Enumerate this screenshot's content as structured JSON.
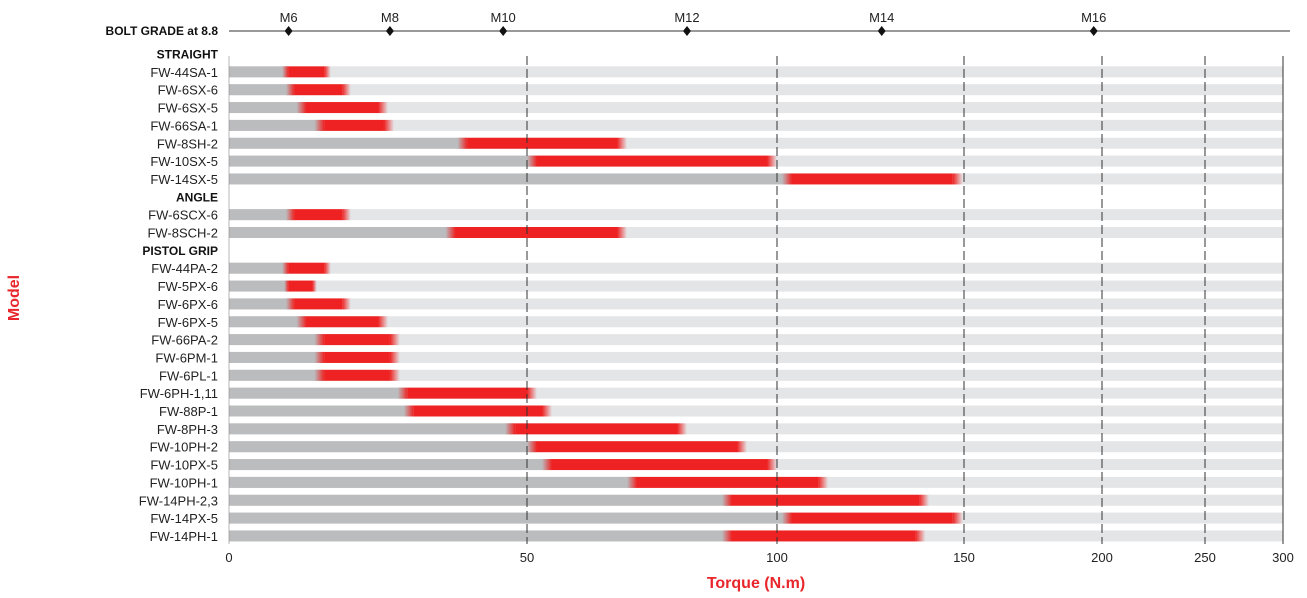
{
  "chart_data": {
    "type": "bar",
    "orientation": "horizontal",
    "xlabel": "Torque (N.m)",
    "ylabel": "Model",
    "x_scale": "piecewise-linear",
    "xlim": [
      0,
      300
    ],
    "x_ticks": [
      0,
      50,
      100,
      150,
      200,
      250,
      300
    ],
    "grid": "dashed vertical lines at 50, 100, 150, 200, 250",
    "bolt_grade": {
      "label": "BOLT GRADE at 8.8",
      "marks": [
        {
          "name": "M6",
          "x": 10
        },
        {
          "name": "M8",
          "x": 27
        },
        {
          "name": "M10",
          "x": 46
        },
        {
          "name": "M12",
          "x": 82
        },
        {
          "name": "M14",
          "x": 128
        },
        {
          "name": "M16",
          "x": 197
        }
      ]
    },
    "groups": [
      {
        "name": "STRAIGHT",
        "items": [
          {
            "model": "FW-44SA-1",
            "min": 10,
            "max": 16
          },
          {
            "model": "FW-6SX-6",
            "min": 11,
            "max": 19
          },
          {
            "model": "FW-6SX-5",
            "min": 13,
            "max": 25
          },
          {
            "model": "FW-66SA-1",
            "min": 16,
            "max": 26
          },
          {
            "model": "FW-8SH-2",
            "min": 40,
            "max": 68
          },
          {
            "model": "FW-10SX-5",
            "min": 52,
            "max": 98
          },
          {
            "model": "FW-14SX-5",
            "min": 104,
            "max": 147
          }
        ]
      },
      {
        "name": "ANGLE",
        "items": [
          {
            "model": "FW-6SCX-6",
            "min": 11,
            "max": 19
          },
          {
            "model": "FW-8SCH-2",
            "min": 38,
            "max": 68
          }
        ]
      },
      {
        "name": "PISTOL GRIP",
        "items": [
          {
            "model": "FW-44PA-2",
            "min": 10,
            "max": 16
          },
          {
            "model": "FW-5PX-6",
            "min": 10,
            "max": 14
          },
          {
            "model": "FW-6PX-6",
            "min": 11,
            "max": 19
          },
          {
            "model": "FW-6PX-5",
            "min": 13,
            "max": 25
          },
          {
            "model": "FW-66PA-2",
            "min": 16,
            "max": 27
          },
          {
            "model": "FW-6PM-1",
            "min": 16,
            "max": 27
          },
          {
            "model": "FW-6PL-1",
            "min": 16,
            "max": 27
          },
          {
            "model": "FW-6PH-1,11",
            "min": 30,
            "max": 50
          },
          {
            "model": "FW-88P-1",
            "min": 31,
            "max": 53
          },
          {
            "model": "FW-8PH-3",
            "min": 48,
            "max": 80
          },
          {
            "model": "FW-10PH-2",
            "min": 52,
            "max": 92
          },
          {
            "model": "FW-10PX-5",
            "min": 55,
            "max": 98
          },
          {
            "model": "FW-10PH-1",
            "min": 72,
            "max": 111
          },
          {
            "model": "FW-14PH-2,3",
            "min": 91,
            "max": 138
          },
          {
            "model": "FW-14PX-5",
            "min": 104,
            "max": 147
          },
          {
            "model": "FW-14PH-1",
            "min": 91,
            "max": 137
          }
        ]
      }
    ]
  },
  "colors": {
    "range": "#ee2222",
    "below": "#bbbcbe",
    "track": "#e4e5e7",
    "axis_title": "#e8262b",
    "text": "#222222"
  }
}
